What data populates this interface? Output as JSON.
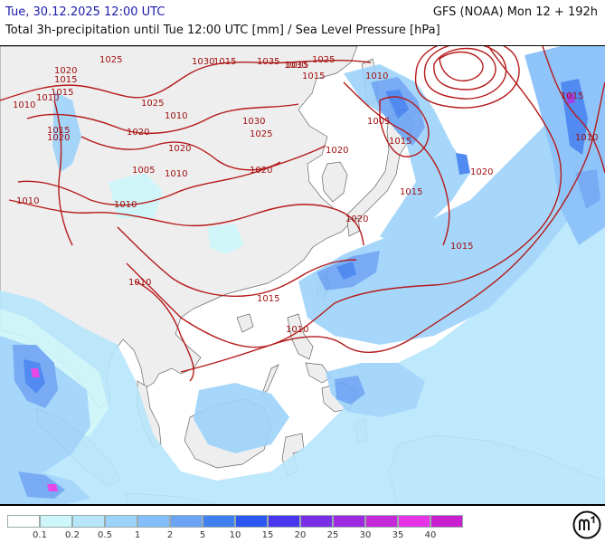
{
  "header": {
    "valid_time": "Tue, 30.12.2025 12:00 UTC",
    "model_run": "GFS (NOAA) Mon 12 + 192h",
    "description": "Total 3h-precipitation until Tue 12:00 UTC [mm] / Sea Level Pressure [hPa]"
  },
  "isobar_labels": [
    "1010",
    "1015",
    "1020",
    "1025",
    "1030",
    "1035",
    "1030",
    "1025",
    "1015",
    "1010",
    "1015",
    "1025",
    "1020",
    "1020",
    "1030",
    "1025",
    "1010",
    "1005",
    "1015",
    "1020",
    "1020",
    "1020",
    "1005",
    "1010",
    "1010",
    "1010",
    "1010",
    "1010",
    "1015",
    "1015",
    "1020",
    "1020",
    "1015",
    "1015",
    "1015",
    "1015",
    "1010",
    "1015",
    "1010"
  ],
  "legend": {
    "values": [
      "0.1",
      "0.2",
      "0.5",
      "1",
      "2",
      "5",
      "10",
      "15",
      "20",
      "25",
      "30",
      "35",
      "40"
    ],
    "colors": [
      "#ffffff",
      "#cdf6fa",
      "#b7e6fb",
      "#9dd3fb",
      "#83befa",
      "#6ba3f5",
      "#3f7ff0",
      "#2a57f2",
      "#4a36ee",
      "#7a2ee6",
      "#9d2ae0",
      "#c52ad8",
      "#e534e5",
      "#c91fcf"
    ]
  },
  "logo": {
    "name": "meteoblue-logo-icon"
  }
}
